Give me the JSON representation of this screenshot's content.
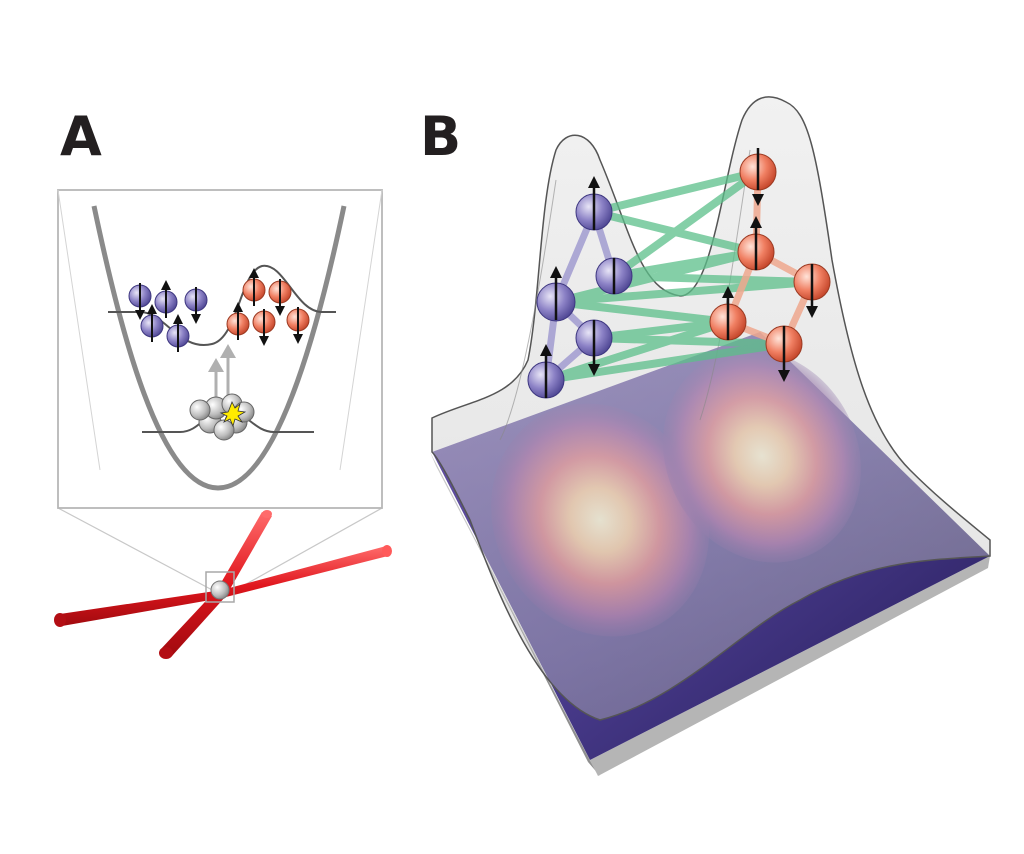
{
  "panels": {
    "a": {
      "label": "A",
      "colors": {
        "spin_left": "#8c82c6",
        "spin_right": "#f07f62",
        "trap": "#8a8a8a",
        "beam": "#e0161d",
        "frame": "#b7b7b7",
        "reservoir_atom": "#bdbdbd",
        "arrow_up": "#b0b0b0",
        "flash": "#ffeb00"
      }
    },
    "b": {
      "label": "B",
      "colors": {
        "spin_left": "#7d76c0",
        "spin_right": "#f07f62",
        "bond_cross": "#5cbf8a",
        "bond_left": "#9d97cf",
        "bond_right": "#efa88f",
        "density_low": "#2b2262",
        "density_mid": "#c0567a",
        "density_high": "#fbf3d3",
        "surface": "#d3d3d3"
      }
    }
  }
}
